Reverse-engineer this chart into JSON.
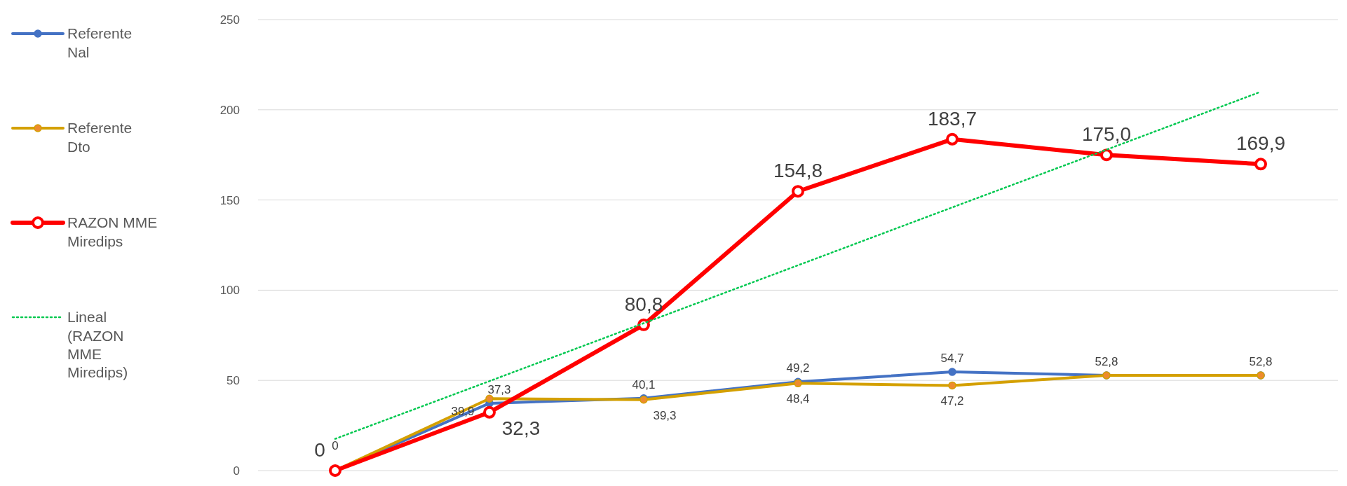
{
  "chart_data": {
    "type": "line",
    "categories": [
      null,
      null,
      null,
      null,
      null,
      null,
      null
    ],
    "series": [
      {
        "name": "Referente Nal",
        "color": "#4472c4",
        "values": [
          0,
          37.3,
          40.1,
          49.2,
          54.7,
          52.8,
          52.8
        ],
        "value_labels": [
          "0",
          "37,3",
          "40,1",
          "49,2",
          "54,7",
          "52,8",
          "52,8"
        ]
      },
      {
        "name": "Referente Dto",
        "color": "#d4a000",
        "values": [
          0,
          39.9,
          39.3,
          48.4,
          47.2,
          52.8,
          52.8
        ],
        "value_labels": [
          null,
          "39,9",
          "39,3",
          "48,4",
          "47,2",
          null,
          null
        ]
      },
      {
        "name": "RAZON MME Miredips",
        "color": "#ff0000",
        "values": [
          0,
          32.3,
          80.8,
          154.8,
          183.7,
          175.0,
          169.9
        ],
        "value_labels": [
          "0",
          "32,3",
          "80,8",
          "154,8",
          "183,7",
          "175,0",
          "169,9"
        ]
      },
      {
        "name": "Lineal (RAZON MME Miredips)",
        "type": "line",
        "color": "#00c850",
        "marker": "none",
        "line_style": "dotted",
        "values": [
          17.6,
          49.6,
          81.7,
          113.8,
          145.9,
          177.9,
          210.0
        ]
      }
    ],
    "ylim": [
      0,
      250
    ],
    "yticks": [
      0,
      50,
      100,
      150,
      200,
      250
    ],
    "grid": "y",
    "legend": "left",
    "marker": "circle",
    "line_style": "solid"
  }
}
